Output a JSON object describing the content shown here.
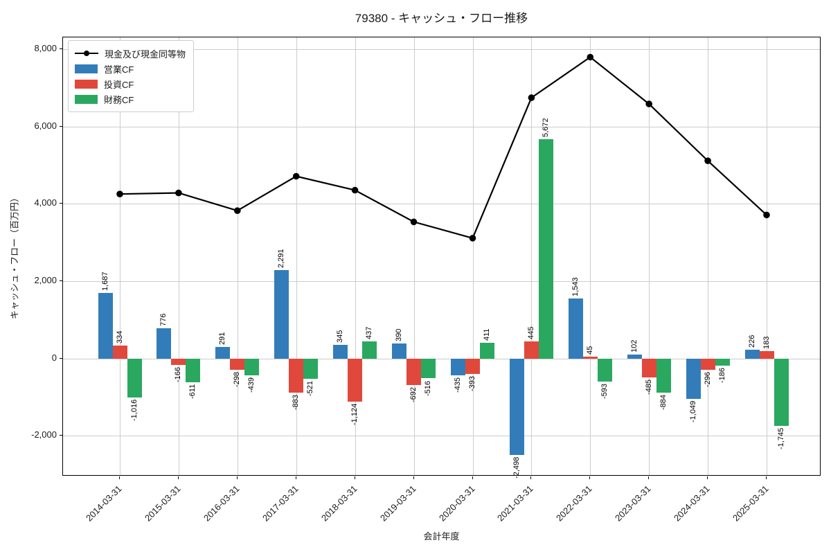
{
  "chart_data": {
    "type": "bar+line",
    "title": "79380 - キャッシュ・フロー推移",
    "xlabel": "会計年度",
    "ylabel": "キャッシュ・フロー（百万円）",
    "categories": [
      "2014-03-31",
      "2015-03-31",
      "2016-03-31",
      "2017-03-31",
      "2018-03-31",
      "2019-03-31",
      "2020-03-31",
      "2021-03-31",
      "2022-03-31",
      "2023-03-31",
      "2024-03-31",
      "2025-03-31"
    ],
    "bar_series": [
      {
        "name": "営業CF",
        "color": "#327db9",
        "values": [
          1687,
          776,
          291,
          2291,
          345,
          390,
          -435,
          -2498,
          1543,
          102,
          -1049,
          226
        ]
      },
      {
        "name": "投資CF",
        "color": "#e1483c",
        "values": [
          334,
          -166,
          -298,
          -883,
          -1124,
          -692,
          -393,
          445,
          45,
          -485,
          -296,
          183
        ]
      },
      {
        "name": "財務CF",
        "color": "#2aa860",
        "values": [
          -1016,
          -611,
          -439,
          -521,
          437,
          -516,
          411,
          5672,
          -593,
          -884,
          -186,
          -1745
        ]
      }
    ],
    "line_series": {
      "name": "現金及び現金同等物",
      "color": "#000000",
      "marker": "circle",
      "values_estimated": [
        4250,
        4280,
        3820,
        4710,
        4350,
        3530,
        3110,
        6740,
        7790,
        6580,
        5110,
        3710
      ]
    },
    "yticks": [
      -2000,
      0,
      2000,
      4000,
      6000,
      8000
    ],
    "ylim": [
      -3050,
      8300
    ],
    "grid": true,
    "legend_position": "upper-left",
    "bar_value_labels": true,
    "style": {
      "grid_color": "#cccccc",
      "spine_color": "#000000",
      "text_color": "#1a1a1a",
      "background": "#ffffff"
    }
  }
}
